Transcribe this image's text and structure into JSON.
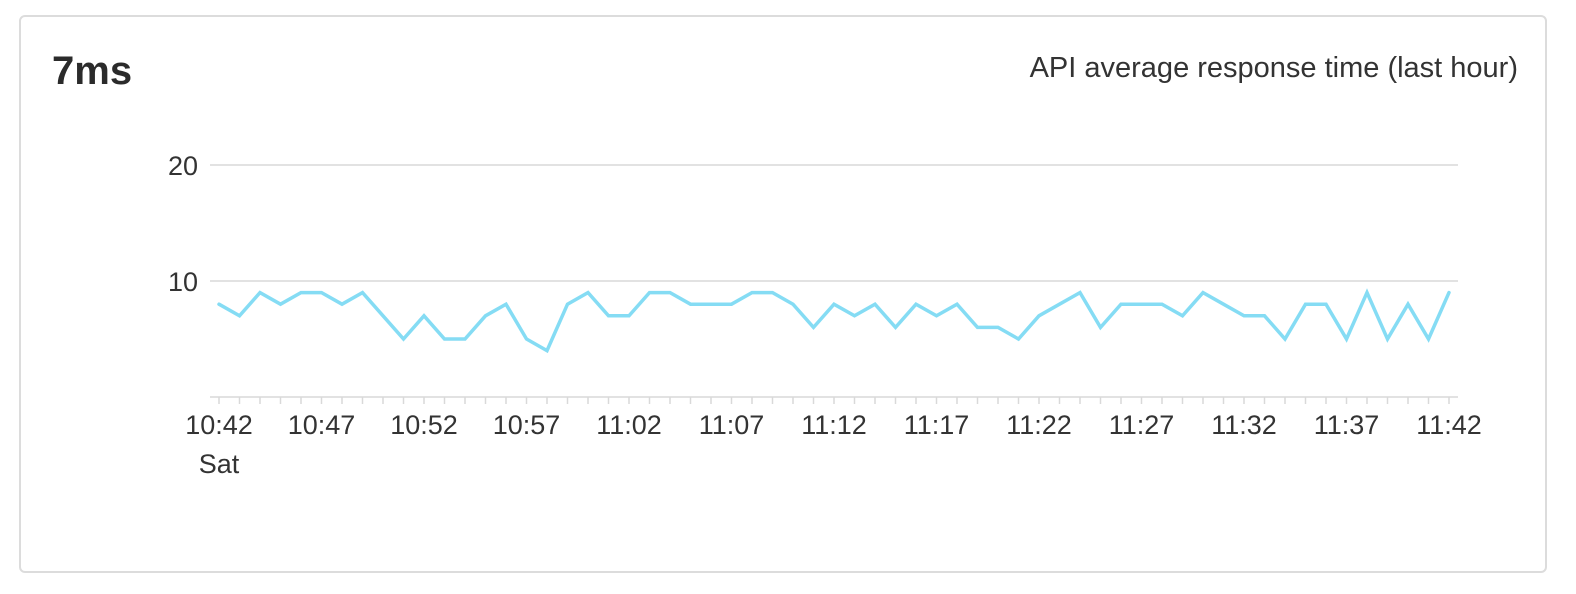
{
  "widget": {
    "metric_value": "7ms",
    "title": "API average response time (last hour)"
  },
  "colors": {
    "line": "#85dcf4",
    "grid": "#d9d9d9",
    "axis_text": "#333333"
  },
  "chart_data": {
    "type": "line",
    "title": "API average response time (last hour)",
    "xlabel": "",
    "ylabel": "",
    "ylim": [
      0,
      20
    ],
    "y_ticks": [
      "10",
      "20"
    ],
    "x_tick_labels": [
      "10:42",
      "10:47",
      "10:52",
      "10:57",
      "11:02",
      "11:07",
      "11:12",
      "11:17",
      "11:22",
      "11:27",
      "11:32",
      "11:37",
      "11:42"
    ],
    "x_sublabel": "Sat",
    "grid": true,
    "x": [
      "10:42",
      "10:43",
      "10:44",
      "10:45",
      "10:46",
      "10:47",
      "10:48",
      "10:49",
      "10:50",
      "10:51",
      "10:52",
      "10:53",
      "10:54",
      "10:55",
      "10:56",
      "10:57",
      "10:58",
      "10:59",
      "11:00",
      "11:01",
      "11:02",
      "11:03",
      "11:04",
      "11:05",
      "11:06",
      "11:07",
      "11:08",
      "11:09",
      "11:10",
      "11:11",
      "11:12",
      "11:13",
      "11:14",
      "11:15",
      "11:16",
      "11:17",
      "11:18",
      "11:19",
      "11:20",
      "11:21",
      "11:22",
      "11:23",
      "11:24",
      "11:25",
      "11:26",
      "11:27",
      "11:28",
      "11:29",
      "11:30",
      "11:31",
      "11:32",
      "11:33",
      "11:34",
      "11:35",
      "11:36",
      "11:37",
      "11:38",
      "11:39",
      "11:40",
      "11:41",
      "11:42"
    ],
    "series": [
      {
        "values": [
          8,
          7,
          9,
          8,
          9,
          9,
          8,
          9,
          7,
          5,
          7,
          5,
          5,
          7,
          8,
          5,
          4,
          8,
          9,
          7,
          7,
          9,
          9,
          8,
          8,
          8,
          9,
          9,
          8,
          6,
          8,
          7,
          8,
          6,
          8,
          7,
          8,
          6,
          6,
          5,
          7,
          8,
          9,
          6,
          8,
          8,
          8,
          7,
          9,
          8,
          7,
          7,
          5,
          8,
          8,
          5,
          9,
          5,
          8,
          5,
          9
        ]
      }
    ]
  }
}
